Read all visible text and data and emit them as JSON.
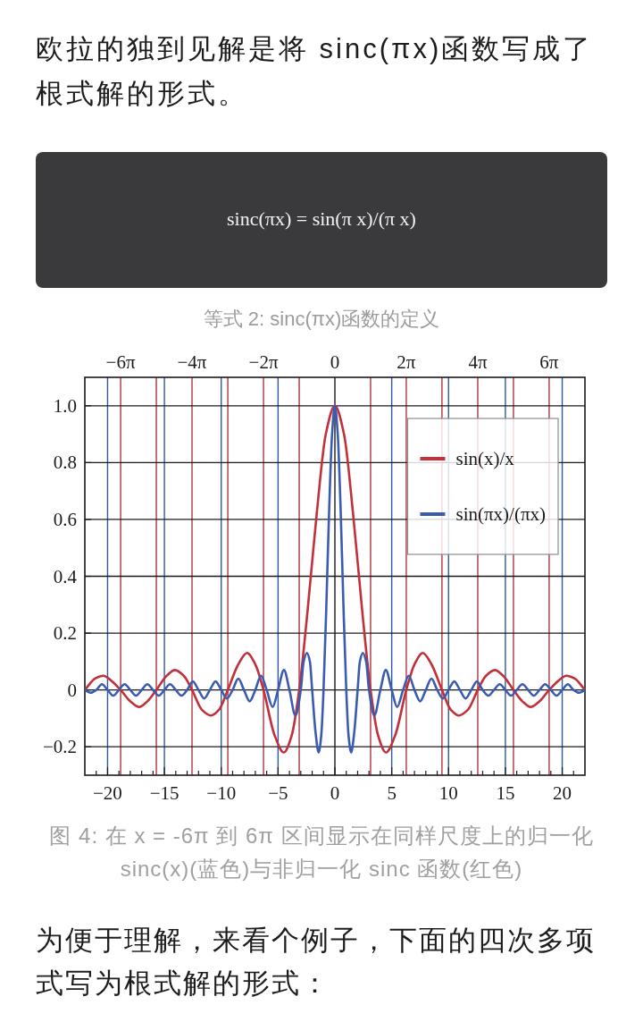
{
  "chart_data": {
    "type": "line",
    "annotations": [
      "欧拉的独到见解是将 sinc(πx)函数写成了根式解的形式。",
      "sinc(πx) = sin(π x)/(π x)",
      "等式 2: sinc(πx)函数的定义",
      "图 4: 在 x = -6π 到 6π 区间显示在同样尺度上的归一化 sinc(x)(蓝色)与非归一化 sinc 函数(红色)",
      "为便于理解，来看个例子，下面的四次多项式写为根式解的形式："
    ],
    "xlim": [
      -22,
      22
    ],
    "ylim": [
      -0.3,
      1.1
    ],
    "xticks": [
      {
        "value": -21,
        "label": null
      },
      {
        "value": -20,
        "label": "−20"
      },
      {
        "value": -19,
        "label": null
      },
      {
        "value": -18,
        "label": null
      },
      {
        "value": -17,
        "label": null
      },
      {
        "value": -16,
        "label": null
      },
      {
        "value": -15,
        "label": "−15"
      },
      {
        "value": -14,
        "label": null
      },
      {
        "value": -13,
        "label": null
      },
      {
        "value": -12,
        "label": null
      },
      {
        "value": -11,
        "label": null
      },
      {
        "value": -10,
        "label": "−10"
      },
      {
        "value": -9,
        "label": null
      },
      {
        "value": -8,
        "label": null
      },
      {
        "value": -7,
        "label": null
      },
      {
        "value": -6,
        "label": null
      },
      {
        "value": -5,
        "label": "−5"
      },
      {
        "value": -4,
        "label": null
      },
      {
        "value": -3,
        "label": null
      },
      {
        "value": -2,
        "label": null
      },
      {
        "value": -1,
        "label": null
      },
      0,
      {
        "value": 1,
        "label": null
      },
      {
        "value": 2,
        "label": null
      },
      {
        "value": 3,
        "label": null
      },
      {
        "value": 4,
        "label": null
      },
      5,
      {
        "value": 6,
        "label": null
      },
      {
        "value": 7,
        "label": null
      },
      {
        "value": 8,
        "label": null
      },
      {
        "value": 9,
        "label": null
      },
      10,
      {
        "value": 11,
        "label": null
      },
      {
        "value": 12,
        "label": null
      },
      {
        "value": 13,
        "label": null
      },
      {
        "value": 14,
        "label": null
      },
      15,
      {
        "value": 16,
        "label": null
      },
      {
        "value": 17,
        "label": null
      },
      {
        "value": 18,
        "label": null
      },
      {
        "value": 19,
        "label": null
      },
      20,
      {
        "value": 21,
        "label": null
      }
    ],
    "yticks": [
      {
        "value": -0.2,
        "label": "−0.2"
      },
      0,
      0.2,
      0.4,
      0.6,
      0.8,
      {
        "value": 1,
        "label": "1.0"
      }
    ],
    "x2lim": [
      -22,
      22
    ],
    "x2ticks": [
      {
        "value": -18.85,
        "label": "−6π"
      },
      {
        "value": -12.57,
        "label": "−4π"
      },
      {
        "value": -6.28,
        "label": "−2π"
      },
      0,
      {
        "value": 6.28,
        "label": "2π"
      },
      {
        "value": 12.57,
        "label": "4π"
      },
      {
        "value": 18.85,
        "label": "6π"
      }
    ],
    "grid": "y",
    "legend": "top right",
    "ref_lines": [
      {
        "axis": "x",
        "value": -18.85,
        "color": "#b0343e"
      },
      {
        "axis": "x",
        "value": -15.71,
        "color": "#b0343e"
      },
      {
        "axis": "x",
        "value": -12.57,
        "color": "#b0343e"
      },
      {
        "axis": "x",
        "value": -9.42,
        "color": "#b0343e"
      },
      {
        "axis": "x",
        "value": -6.28,
        "color": "#b0343e"
      },
      {
        "axis": "x",
        "value": -3.14,
        "color": "#b0343e"
      },
      {
        "axis": "x",
        "value": 3.14,
        "color": "#b0343e"
      },
      {
        "axis": "x",
        "value": 6.28,
        "color": "#b0343e"
      },
      {
        "axis": "x",
        "value": 9.42,
        "color": "#b0343e"
      },
      {
        "axis": "x",
        "value": 12.57,
        "color": "#b0343e"
      },
      {
        "axis": "x",
        "value": 15.71,
        "color": "#b0343e"
      },
      {
        "axis": "x",
        "value": 18.85,
        "color": "#b0343e"
      },
      {
        "axis": "x",
        "value": -20,
        "color": "#2e5a9e"
      },
      {
        "axis": "x",
        "value": -15,
        "color": "#2e5a9e"
      },
      {
        "axis": "x",
        "value": -10,
        "color": "#2e5a9e"
      },
      {
        "axis": "x",
        "value": -5,
        "color": "#2e5a9e"
      },
      {
        "axis": "x",
        "value": 5,
        "color": "#2e5a9e"
      },
      {
        "axis": "x",
        "value": 10,
        "color": "#2e5a9e"
      },
      {
        "axis": "x",
        "value": 15,
        "color": "#2e5a9e"
      },
      {
        "axis": "x",
        "value": 20,
        "color": "#2e5a9e"
      },
      {
        "axis": "x",
        "value": 0,
        "color": "#1a1a1a"
      }
    ],
    "series": [
      {
        "name": "sin(x)/x",
        "color": "#c2303a",
        "x": [
          -22,
          -21.1,
          -20.37,
          -19.6,
          -18.85,
          -18,
          -17.22,
          -16.5,
          -15.71,
          -14.8,
          -14.07,
          -13.3,
          -12.57,
          -11.7,
          -10.9,
          -10.2,
          -9.42,
          -8.5,
          -7.73,
          -7,
          -6.28,
          -5.3,
          -4.49,
          -3.8,
          -3.14,
          -2.4,
          -1.6,
          -0.8,
          0,
          0.8,
          1.6,
          2.4,
          3.14,
          3.8,
          4.49,
          5.3,
          6.28,
          7,
          7.73,
          8.5,
          9.42,
          10.2,
          10.9,
          11.7,
          12.57,
          13.3,
          14.07,
          14.8,
          15.71,
          16.5,
          17.22,
          18,
          18.85,
          19.6,
          20.37,
          21.1,
          22
        ],
        "values": [
          0,
          0.04,
          0.05,
          0.03,
          0,
          -0.04,
          -0.06,
          -0.04,
          0,
          0.05,
          0.07,
          0.05,
          0,
          -0.07,
          -0.09,
          -0.07,
          0,
          0.09,
          0.13,
          0.09,
          0,
          -0.16,
          -0.22,
          -0.16,
          0,
          0.28,
          0.62,
          0.9,
          1,
          0.9,
          0.62,
          0.28,
          0,
          -0.16,
          -0.22,
          -0.16,
          0,
          0.09,
          0.13,
          0.09,
          0,
          -0.07,
          -0.09,
          -0.07,
          0,
          0.05,
          0.07,
          0.05,
          0,
          -0.04,
          -0.06,
          -0.04,
          0,
          0.03,
          0.05,
          0.04,
          0
        ]
      },
      {
        "name": "sin(πx)/(πx)",
        "color": "#3a5cb0",
        "x": [
          -22,
          -21.5,
          -21,
          -20.5,
          -20,
          -19.5,
          -19,
          -18.5,
          -18,
          -17.5,
          -17,
          -16.5,
          -16,
          -15.5,
          -15,
          -14.5,
          -14,
          -13.5,
          -13,
          -12.5,
          -12,
          -11.5,
          -11,
          -10.5,
          -10,
          -9.5,
          -9,
          -8.5,
          -8,
          -7.5,
          -7,
          -6.5,
          -6,
          -5.48,
          -5,
          -4.48,
          -4,
          -3.47,
          -3,
          -2.75,
          -2.46,
          -2.2,
          -2,
          -1.7,
          -1.43,
          -1.2,
          -1,
          -0.75,
          -0.5,
          -0.25,
          0,
          0.25,
          0.5,
          0.75,
          1,
          1.2,
          1.43,
          1.7,
          2,
          2.2,
          2.46,
          2.75,
          3,
          3.47,
          4,
          4.48,
          5,
          5.48,
          6,
          6.5,
          7,
          7.5,
          8,
          8.5,
          9,
          9.5,
          10,
          10.5,
          11,
          11.5,
          12,
          12.5,
          13,
          13.5,
          14,
          14.5,
          15,
          15.5,
          16,
          16.5,
          17,
          17.5,
          18,
          18.5,
          19,
          19.5,
          20,
          20.5,
          21,
          21.5,
          22
        ],
        "values": [
          0,
          -0.01,
          0,
          0.02,
          0,
          -0.02,
          0,
          0.02,
          0,
          -0.02,
          0,
          0.02,
          0,
          -0.02,
          0,
          0.02,
          0,
          -0.02,
          0,
          0.03,
          0,
          -0.03,
          0,
          0.03,
          0,
          -0.03,
          0,
          0.04,
          0,
          -0.04,
          0,
          0.05,
          0,
          -0.06,
          0,
          0.07,
          0,
          -0.09,
          0,
          0.1,
          0.13,
          0.1,
          0,
          -0.15,
          -0.22,
          -0.16,
          0,
          0.3,
          0.64,
          0.9,
          1,
          0.9,
          0.64,
          0.3,
          0,
          -0.16,
          -0.22,
          -0.15,
          0,
          0.1,
          0.13,
          0.1,
          0,
          -0.09,
          0,
          0.07,
          0,
          -0.06,
          0,
          0.05,
          0,
          -0.04,
          0,
          0.04,
          0,
          -0.03,
          0,
          0.03,
          0,
          -0.03,
          0,
          0.03,
          0,
          -0.02,
          0,
          0.02,
          0,
          -0.02,
          0,
          0.02,
          0,
          -0.02,
          0,
          0.02,
          0,
          -0.02,
          0,
          0.02,
          0,
          -0.01,
          0
        ]
      }
    ]
  }
}
